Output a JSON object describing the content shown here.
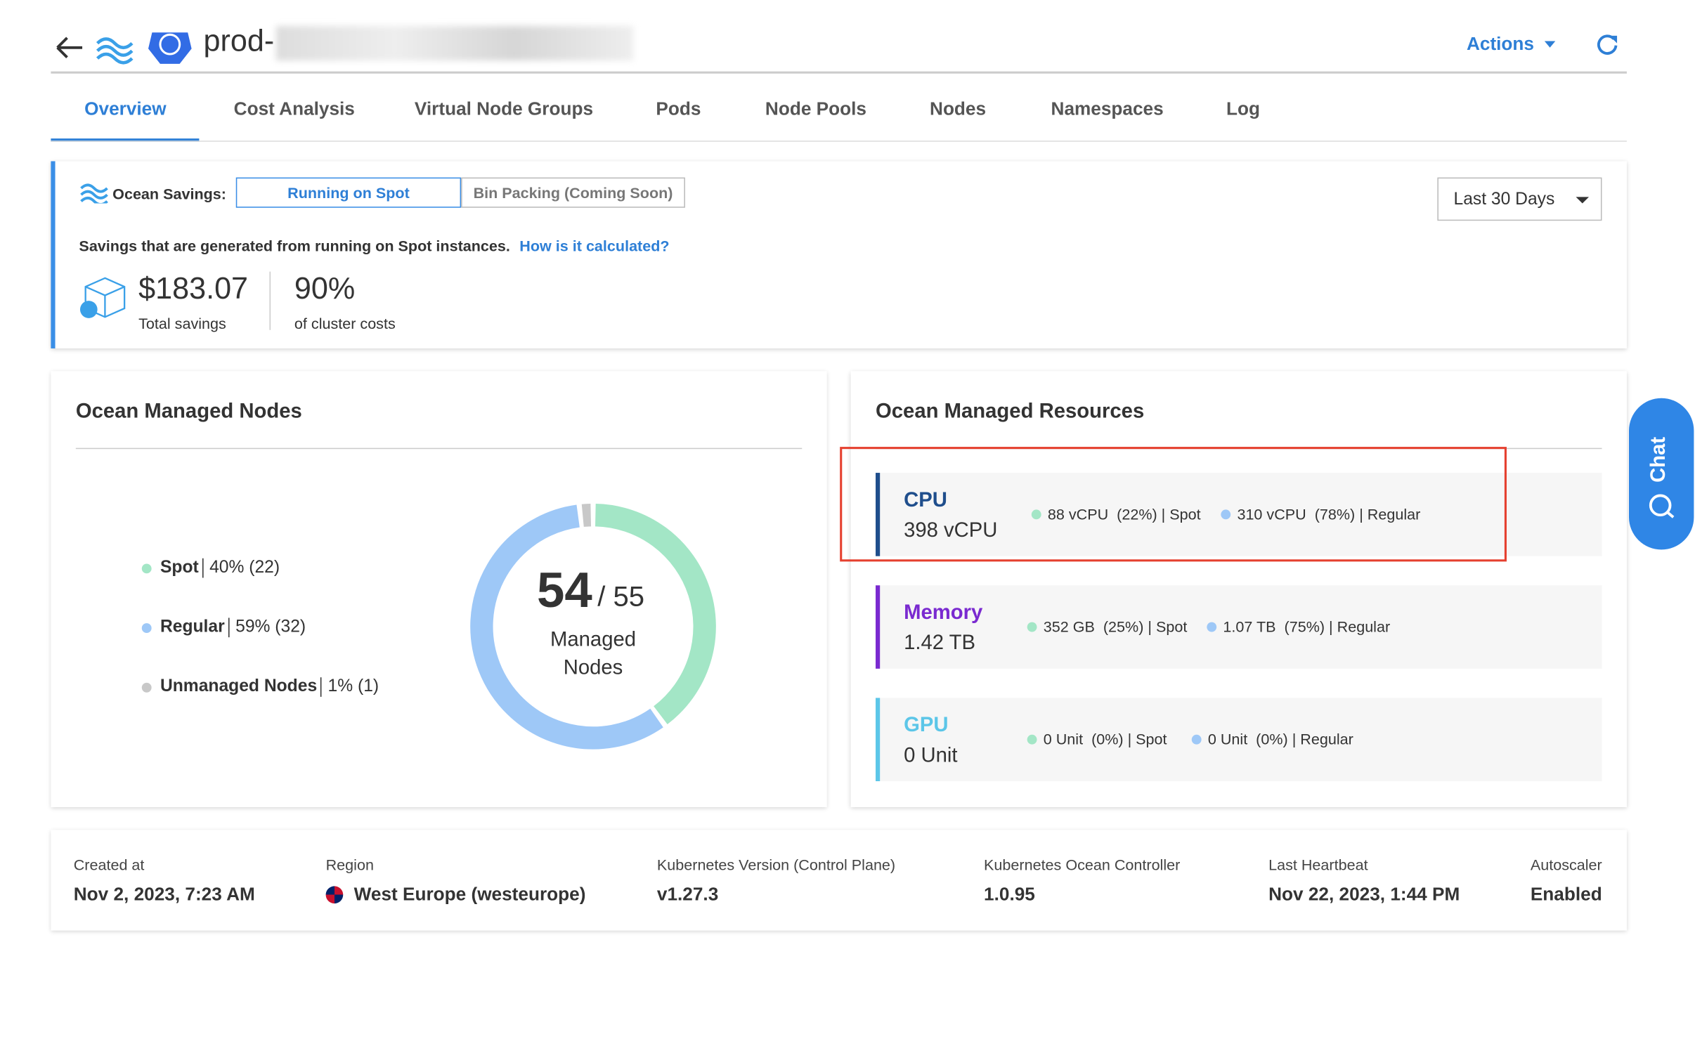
{
  "header": {
    "title": "prod-",
    "actions": "Actions"
  },
  "tabs": [
    "Overview",
    "Cost Analysis",
    "Virtual Node Groups",
    "Pods",
    "Node Pools",
    "Nodes",
    "Namespaces",
    "Log"
  ],
  "savings": {
    "label": "Ocean Savings:",
    "toggle": [
      "Running on Spot",
      "Bin Packing (Coming Soon)"
    ],
    "period": "Last 30 Days",
    "description": "Savings that are generated from running on Spot instances.",
    "link": "How is it calculated?",
    "total": "$183.07",
    "total_caption": "Total savings",
    "share": "90%",
    "share_caption": "of cluster costs"
  },
  "nodes": {
    "title": "Ocean Managed Nodes",
    "managed": 54,
    "total": "/ 55",
    "center_caption": "Managed Nodes",
    "items": [
      {
        "name": "Spot",
        "label": "40% (22)",
        "value": 22,
        "color": "#a3e6c6"
      },
      {
        "name": "Regular",
        "label": "59% (32)",
        "value": 32,
        "color": "#9ec8f7"
      },
      {
        "name": "Unmanaged Nodes",
        "label": "1% (1)",
        "value": 1,
        "color": "#c8c8c8"
      }
    ]
  },
  "resources": {
    "title": "Ocean Managed Resources",
    "items": [
      {
        "name": "CPU",
        "total": "398 vCPU",
        "color": "#1f4e8c",
        "spot": "88 vCPU  (22%) | Spot",
        "regular": "310 vCPU  (78%) | Regular"
      },
      {
        "name": "Memory",
        "total": "1.42 TB",
        "color": "#7a2ad0",
        "spot": "352 GB  (25%) | Spot",
        "regular": "1.07 TB  (75%) | Regular"
      },
      {
        "name": "GPU",
        "total": "0 Unit",
        "color": "#5cc6e8",
        "spot": "0 Unit  (0%) | Spot",
        "regular": "0 Unit  (0%) | Regular"
      }
    ]
  },
  "chat": "Chat",
  "details": [
    {
      "label": "Created at",
      "value": "Nov 2, 2023, 7:23 AM"
    },
    {
      "label": "Region",
      "value": "West Europe (westeurope)"
    },
    {
      "label": "Kubernetes Version (Control Plane)",
      "value": "v1.27.3"
    },
    {
      "label": "Kubernetes Ocean Controller",
      "value": "1.0.95"
    },
    {
      "label": "Last Heartbeat",
      "value": "Nov 22, 2023, 1:44 PM"
    },
    {
      "label": "Autoscaler",
      "value": "Enabled"
    }
  ]
}
